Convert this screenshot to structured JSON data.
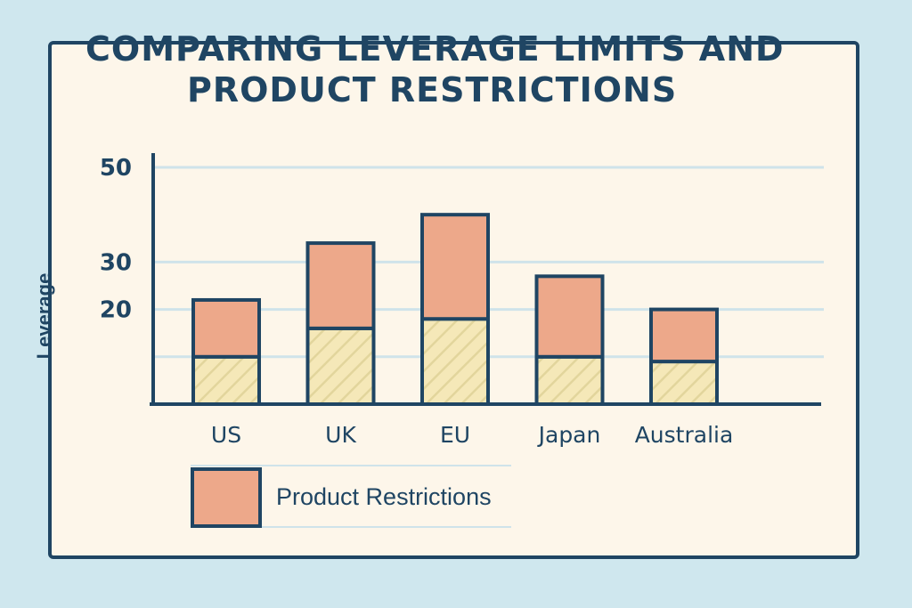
{
  "chart_data": {
    "type": "bar",
    "stacked": true,
    "title": "COMPARING LEVERAGE LIMITS AND PRODUCT RESTRICTIONS",
    "title_lines": [
      "COMPARING LEVERAGE LIMITS AND",
      "PRODUCT RESTRICTIONS"
    ],
    "xlabel": "",
    "ylabel": "Leverage",
    "categories": [
      "US",
      "UK",
      "EU",
      "Japan",
      "Australia"
    ],
    "y_ticks": [
      {
        "label": "20",
        "value": 20
      },
      {
        "label": "30",
        "value": 30
      },
      {
        "label": "50",
        "value": 50
      }
    ],
    "gridlines": [
      10,
      20,
      30,
      50
    ],
    "ylim": [
      0,
      53
    ],
    "series": [
      {
        "values": [
          10,
          16,
          18,
          10,
          9
        ],
        "color": "#f5e8b8",
        "pattern": "hatched"
      },
      {
        "name": "Product Restrictions",
        "values": [
          12,
          18,
          22,
          17,
          11
        ],
        "color": "#eda88a"
      }
    ],
    "legend": [
      {
        "label": "Product Restrictions",
        "color": "#eda88a"
      }
    ],
    "legend_position": "bottom-left",
    "grid": true
  },
  "colors": {
    "background": "#cfe7ee",
    "card": "#fdf6ea",
    "ink": "#1f4563",
    "grid": "#cfe3ea",
    "restriction_fill": "#eda88a",
    "base_fill": "#f5e8b8",
    "hatch": "#e2d59c"
  }
}
